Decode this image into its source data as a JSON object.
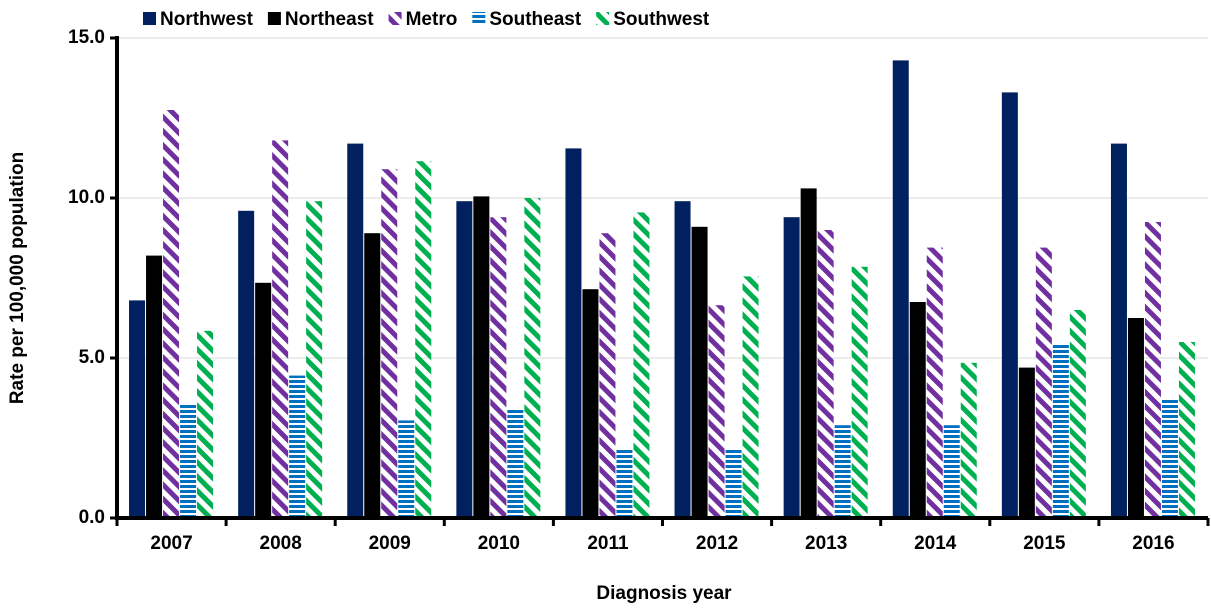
{
  "chart_data": {
    "type": "bar",
    "y_label": "Rate per 100,000 population",
    "x_label": "Diagnosis year",
    "categories": [
      "2007",
      "2008",
      "2009",
      "2010",
      "2011",
      "2012",
      "2013",
      "2014",
      "2015",
      "2016"
    ],
    "series": [
      {
        "name": "Northwest",
        "color": "#002060",
        "pattern": "solid",
        "values": [
          6.8,
          9.6,
          11.7,
          9.9,
          11.55,
          9.9,
          9.4,
          14.3,
          13.3,
          11.7
        ]
      },
      {
        "name": "Northeast",
        "color": "#000000",
        "pattern": "solid",
        "values": [
          8.2,
          7.35,
          8.9,
          10.05,
          7.15,
          9.1,
          10.3,
          6.75,
          4.7,
          6.25
        ]
      },
      {
        "name": "Metro",
        "color": "#7030a0",
        "pattern": "diagonal",
        "values": [
          12.75,
          11.8,
          10.9,
          9.4,
          8.9,
          6.65,
          9.0,
          8.45,
          8.45,
          9.25
        ]
      },
      {
        "name": "Southeast",
        "color": "#0070c0",
        "pattern": "horizontal",
        "values": [
          3.55,
          4.45,
          3.05,
          3.4,
          2.15,
          2.15,
          2.9,
          2.9,
          5.45,
          3.7
        ]
      },
      {
        "name": "Southwest",
        "color": "#00b050",
        "pattern": "diagonal",
        "values": [
          5.85,
          9.9,
          11.15,
          10.0,
          9.55,
          7.55,
          7.85,
          4.85,
          6.5,
          5.5
        ]
      }
    ],
    "ylim": [
      0,
      15
    ],
    "yticks": [
      {
        "value": 0,
        "label": "0.0"
      },
      {
        "value": 5,
        "label": "5.0"
      },
      {
        "value": 10,
        "label": "10.0"
      },
      {
        "value": 15,
        "label": "15.0"
      }
    ],
    "grid": true
  }
}
